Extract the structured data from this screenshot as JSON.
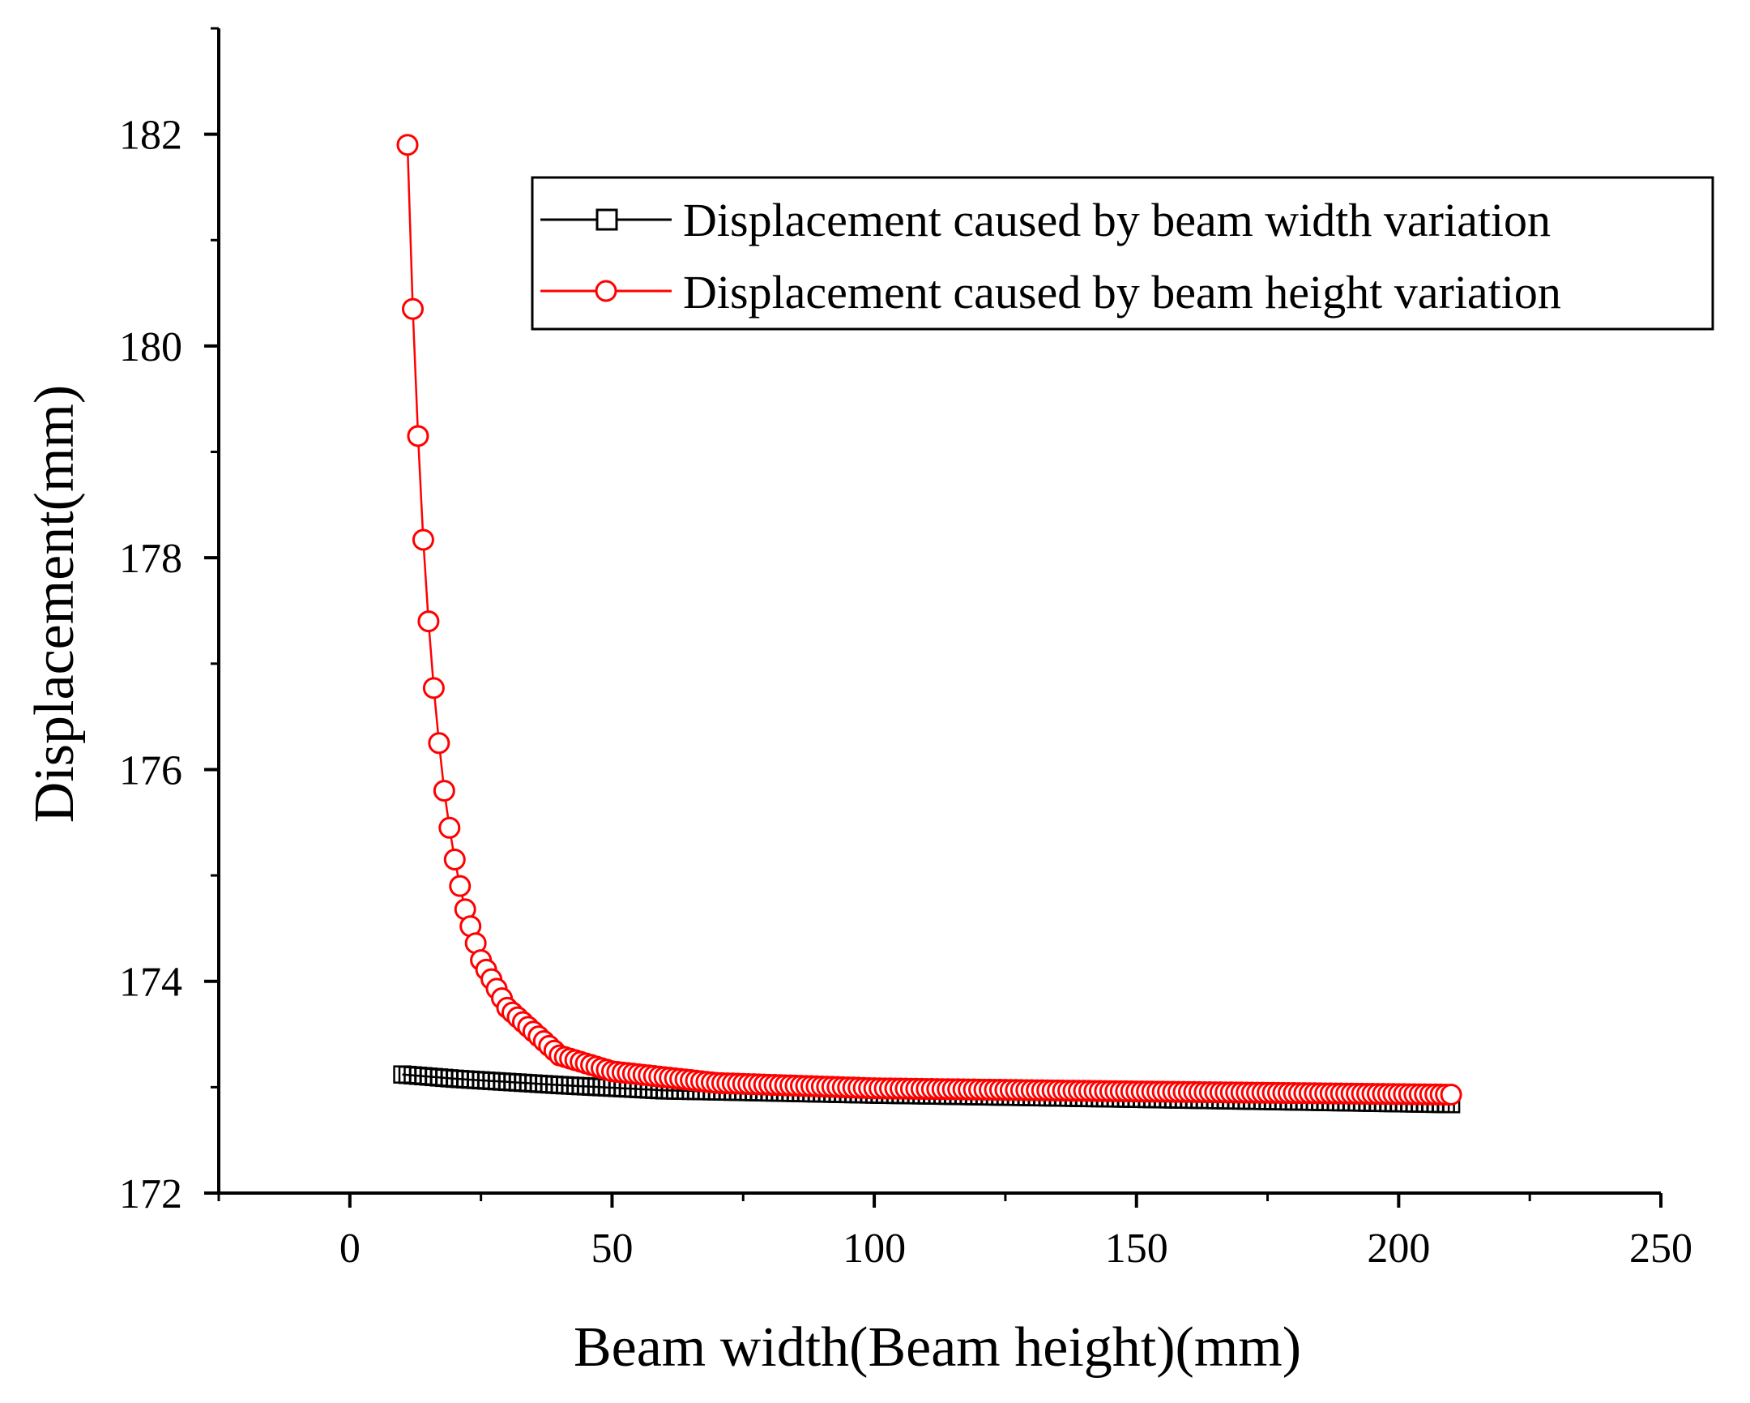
{
  "chart_data": {
    "type": "scatter",
    "title": "",
    "xlabel": "Beam width(Beam height)(mm)",
    "ylabel": "Displacement(mm)",
    "xlim": [
      -25,
      250
    ],
    "ylim": [
      172,
      183
    ],
    "xticks": [
      0,
      50,
      100,
      150,
      200,
      250
    ],
    "yticks": [
      172,
      174,
      176,
      178,
      180,
      182
    ],
    "xtick_labels": [
      "0",
      "50",
      "100",
      "150",
      "200",
      "250"
    ],
    "ytick_labels": [
      "172",
      "174",
      "176",
      "178",
      "180",
      "182"
    ],
    "legend_position": "top-right",
    "series": [
      {
        "name": "Displacement caused by beam width variation",
        "marker": "square",
        "color": "#000000",
        "x_start": 10,
        "x_end": 210,
        "x_step": 1,
        "key_points": [
          [
            10,
            173.12
          ],
          [
            20,
            173.08
          ],
          [
            40,
            173.02
          ],
          [
            60,
            172.97
          ],
          [
            100,
            172.93
          ],
          [
            150,
            172.89
          ],
          [
            210,
            172.84
          ]
        ]
      },
      {
        "name": "Displacement caused by beam height variation",
        "marker": "circle",
        "color": "#ff0000",
        "x_start": 11,
        "x_end": 210,
        "x_step": 1,
        "key_points": [
          [
            11,
            181.9
          ],
          [
            12,
            180.35
          ],
          [
            13,
            179.15
          ],
          [
            14,
            178.17
          ],
          [
            15,
            177.4
          ],
          [
            16,
            176.77
          ],
          [
            17,
            176.25
          ],
          [
            18,
            175.8
          ],
          [
            19,
            175.45
          ],
          [
            20,
            175.15
          ],
          [
            21,
            174.9
          ],
          [
            22,
            174.68
          ],
          [
            25,
            174.2
          ],
          [
            30,
            173.75
          ],
          [
            40,
            173.3
          ],
          [
            50,
            173.15
          ],
          [
            70,
            173.04
          ],
          [
            100,
            172.99
          ],
          [
            150,
            172.96
          ],
          [
            210,
            172.93
          ]
        ]
      }
    ]
  }
}
